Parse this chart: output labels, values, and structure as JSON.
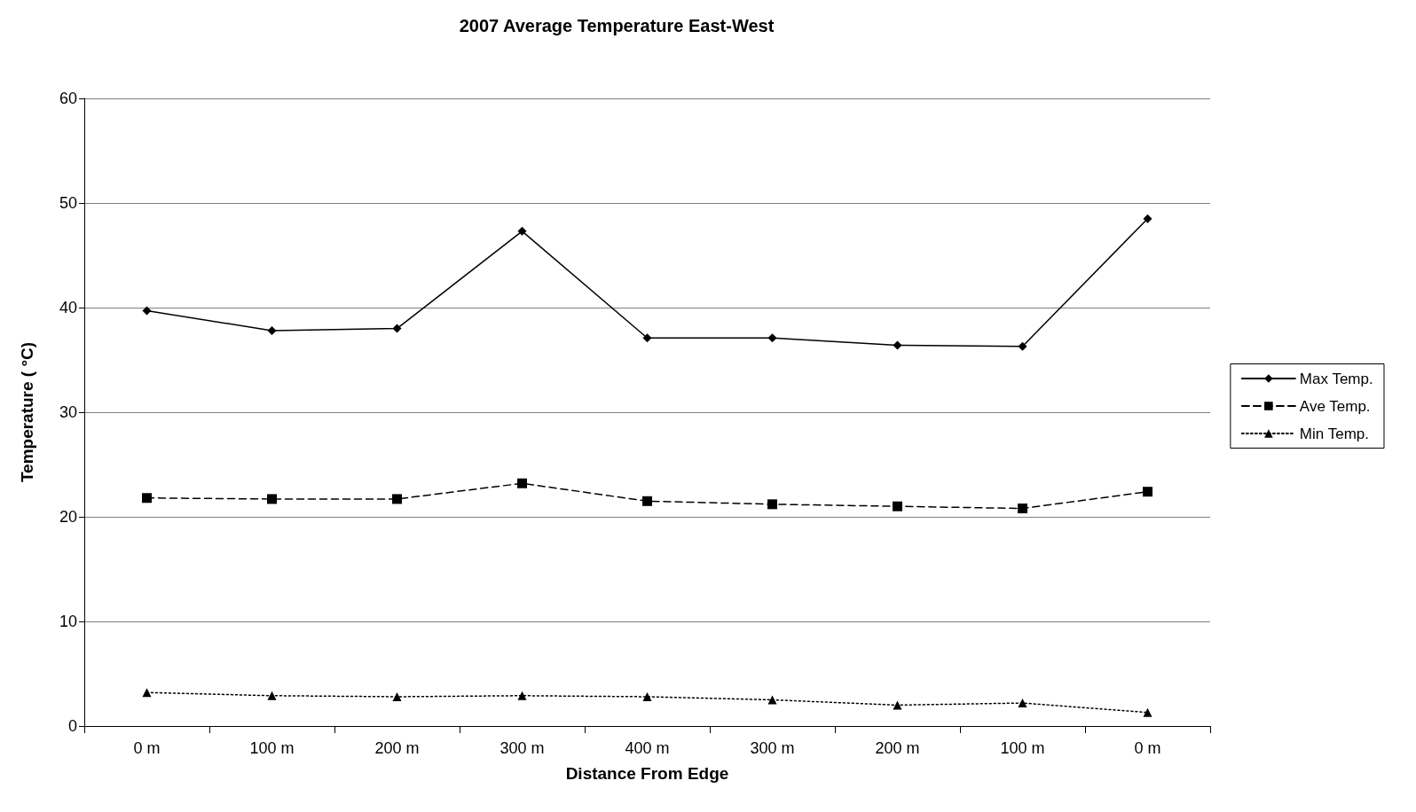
{
  "chart_data": {
    "type": "line",
    "title": "2007 Average Temperature East-West",
    "xlabel": "Distance From Edge",
    "ylabel": "Temperature ( °C)",
    "categories": [
      "0 m",
      "100 m",
      "200 m",
      "300 m",
      "400 m",
      "300 m",
      "200 m",
      "100 m",
      "0 m"
    ],
    "series": [
      {
        "name": "Max Temp.",
        "color": "#000000",
        "marker": "diamond",
        "line_style": "solid",
        "values": [
          39.7,
          37.8,
          38.0,
          47.3,
          37.1,
          37.1,
          36.4,
          36.3,
          48.5
        ]
      },
      {
        "name": "Ave Temp.",
        "color": "#000000",
        "marker": "square",
        "line_style": "dashed",
        "values": [
          21.8,
          21.7,
          21.7,
          23.2,
          21.5,
          21.2,
          21.0,
          20.8,
          22.4
        ]
      },
      {
        "name": "Min Temp.",
        "color": "#000000",
        "marker": "triangle",
        "line_style": "dotted",
        "values": [
          3.2,
          2.9,
          2.8,
          2.9,
          2.8,
          2.5,
          2.0,
          2.2,
          1.3
        ]
      }
    ],
    "ylim": [
      0,
      60
    ],
    "yticks": [
      0,
      10,
      20,
      30,
      40,
      50,
      60
    ],
    "grid": "y",
    "legend": "right"
  }
}
